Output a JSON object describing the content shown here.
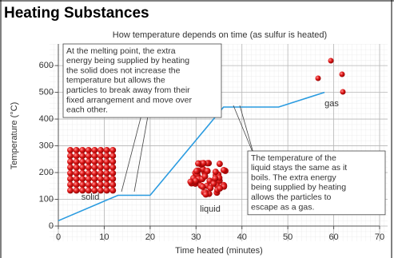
{
  "header": {
    "title": "Heating Substances"
  },
  "chart_data": {
    "type": "line",
    "title": "How temperature depends on time (as sulfur is heated)",
    "x_label": "Time heated (minutes)",
    "y_label": "Temperature (°C)",
    "x": [
      0,
      13,
      20,
      36,
      48,
      58
    ],
    "values": [
      20,
      115,
      115,
      445,
      445,
      500
    ],
    "color": "#2a9be0",
    "xlim": [
      0,
      70
    ],
    "xticks": [
      0,
      10,
      20,
      30,
      40,
      50,
      60,
      70
    ],
    "ylim": [
      0,
      675
    ],
    "yticks": [
      0,
      100,
      200,
      300,
      400,
      500,
      600
    ],
    "grid": true,
    "melting_note": [
      "At the melting point, the extra",
      "energy being supplied by heating",
      "the solid does not increase the",
      "temperature but allows the",
      "particles to break away from their",
      "fixed arrangement and move over",
      "each other."
    ],
    "boiling_note": [
      "The temperature of the",
      "liquid stays the same as it",
      "boils. The extra energy",
      "being supplied by heating",
      "allows the particles to",
      "escape as a gas."
    ],
    "phase_labels": [
      "solid",
      "liquid",
      "gas"
    ]
  }
}
